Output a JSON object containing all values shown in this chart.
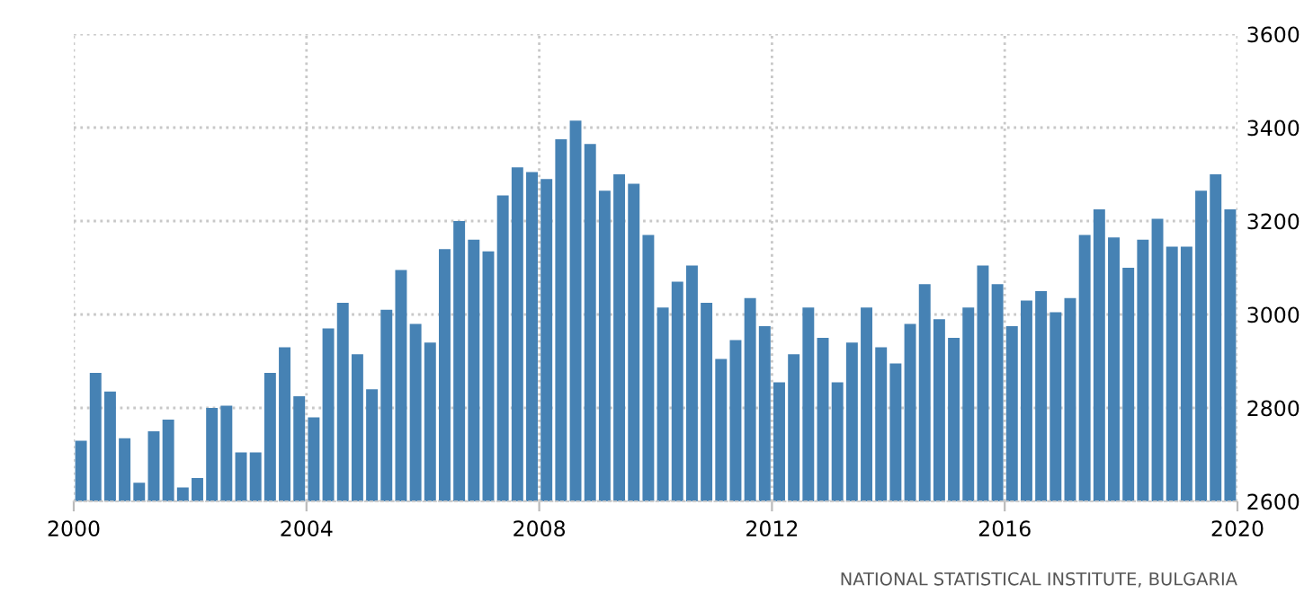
{
  "chart_data": {
    "type": "bar",
    "x": [
      2000.125,
      2000.375,
      2000.625,
      2000.875,
      2001.125,
      2001.375,
      2001.625,
      2001.875,
      2002.125,
      2002.375,
      2002.625,
      2002.875,
      2003.125,
      2003.375,
      2003.625,
      2003.875,
      2004.125,
      2004.375,
      2004.625,
      2004.875,
      2005.125,
      2005.375,
      2005.625,
      2005.875,
      2006.125,
      2006.375,
      2006.625,
      2006.875,
      2007.125,
      2007.375,
      2007.625,
      2007.875,
      2008.125,
      2008.375,
      2008.625,
      2008.875,
      2009.125,
      2009.375,
      2009.625,
      2009.875,
      2010.125,
      2010.375,
      2010.625,
      2010.875,
      2011.125,
      2011.375,
      2011.625,
      2011.875,
      2012.125,
      2012.375,
      2012.625,
      2012.875,
      2013.125,
      2013.375,
      2013.625,
      2013.875,
      2014.125,
      2014.375,
      2014.625,
      2014.875,
      2015.125,
      2015.375,
      2015.625,
      2015.875,
      2016.125,
      2016.375,
      2016.625,
      2016.875,
      2017.125,
      2017.375,
      2017.625,
      2017.875,
      2018.125,
      2018.375,
      2018.625,
      2018.875,
      2019.125,
      2019.375,
      2019.625,
      2019.875
    ],
    "values": [
      2730,
      2875,
      2835,
      2735,
      2640,
      2750,
      2775,
      2630,
      2650,
      2800,
      2805,
      2705,
      2705,
      2875,
      2930,
      2825,
      2780,
      2970,
      3025,
      2915,
      2840,
      3010,
      3095,
      2980,
      2940,
      3140,
      3200,
      3160,
      3135,
      3255,
      3315,
      3305,
      3290,
      3375,
      3415,
      3365,
      3265,
      3300,
      3280,
      3170,
      3015,
      3070,
      3105,
      3025,
      2905,
      2945,
      3035,
      2975,
      2855,
      2915,
      3015,
      2950,
      2855,
      2940,
      3015,
      2930,
      2895,
      2980,
      3065,
      2990,
      2950,
      3015,
      3105,
      3065,
      2975,
      3030,
      3050,
      3005,
      3035,
      3170,
      3225,
      3165,
      3100,
      3160,
      3205,
      3145,
      3145,
      3265,
      3300,
      3225
    ],
    "color": "#4682b4",
    "xlim": [
      2000,
      2020
    ],
    "xticks": [
      2000,
      2004,
      2008,
      2012,
      2016,
      2020
    ],
    "ylim": [
      2600,
      3600
    ],
    "yticks": [
      2600,
      2800,
      3000,
      3200,
      3400,
      3600
    ],
    "grid": true,
    "annotations": [
      "NATIONAL STATISTICAL INSTITUTE, BULGARIA"
    ]
  }
}
